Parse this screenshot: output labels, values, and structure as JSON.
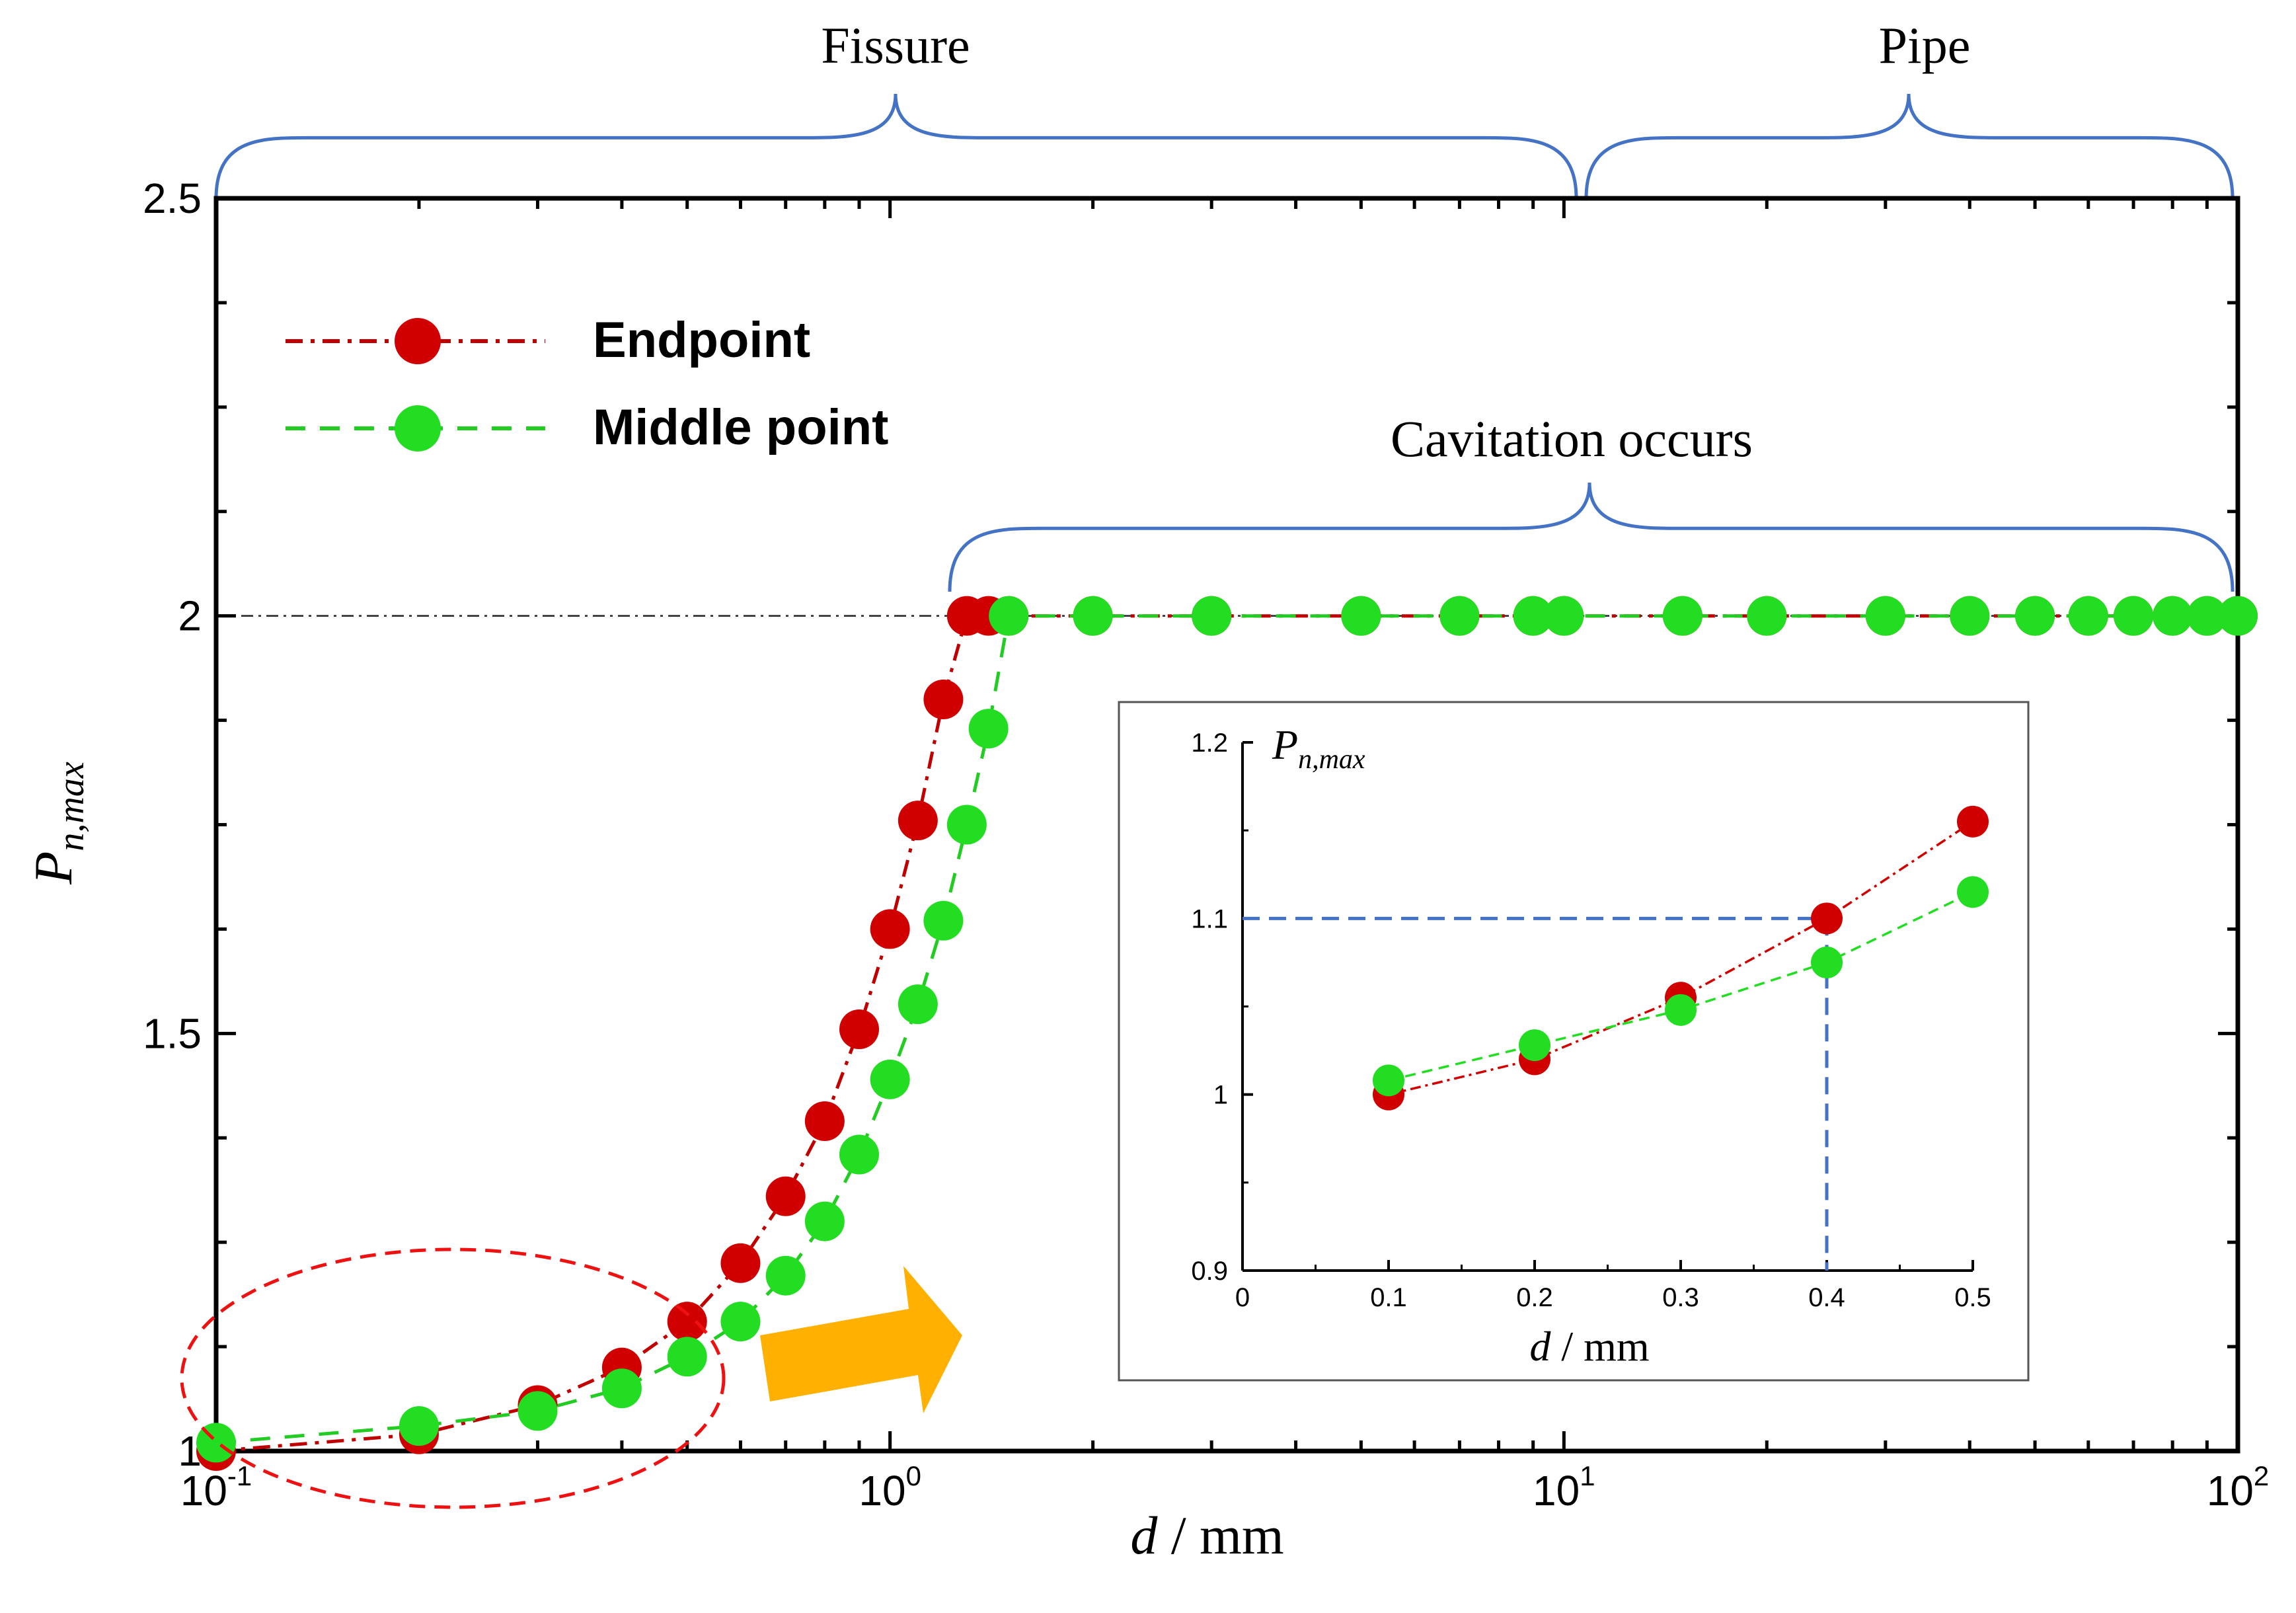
{
  "chart_data": [
    {
      "type": "line",
      "xscale": "log",
      "xlim": [
        0.1,
        100
      ],
      "ylim": [
        1,
        2.5
      ],
      "xlabel_var": "d",
      "xlabel_unit": " / mm",
      "ylabel_main": "P",
      "ylabel_sub": "n,max",
      "y_ticks": [
        {
          "value": 1,
          "label": "1"
        },
        {
          "value": 1.5,
          "label": "1.5"
        },
        {
          "value": 2,
          "label": "2"
        },
        {
          "value": 2.5,
          "label": "2.5"
        }
      ],
      "x_ticks": [
        {
          "value": 0.1,
          "base": "10",
          "exp": "-1"
        },
        {
          "value": 1,
          "base": "10",
          "exp": "0"
        },
        {
          "value": 10,
          "base": "10",
          "exp": "1"
        },
        {
          "value": 100,
          "base": "10",
          "exp": "2"
        }
      ],
      "reference_line_y": 2,
      "series": [
        {
          "name": "Endpoint",
          "color": "#d10000",
          "line_color": "#c00000",
          "dash": "dashdot",
          "x": [
            0.1,
            0.2,
            0.3,
            0.4,
            0.5,
            0.6,
            0.7,
            0.8,
            0.9,
            1.0,
            1.1,
            1.2,
            1.3,
            1.4,
            1.5,
            2,
            3,
            5,
            7,
            9,
            10,
            15,
            20,
            30,
            40,
            50,
            60,
            70,
            80,
            90,
            100
          ],
          "values": [
            1.0,
            1.02,
            1.055,
            1.1,
            1.155,
            1.225,
            1.305,
            1.395,
            1.505,
            1.625,
            1.755,
            1.9,
            2.0,
            2.0,
            2.0,
            2.0,
            2.0,
            2.0,
            2.0,
            2.0,
            2.0,
            2.0,
            2.0,
            2.0,
            2.0,
            2.0,
            2.0,
            2.0,
            2.0,
            2.0,
            2.0
          ]
        },
        {
          "name": "Middle point",
          "color": "#22dd22",
          "line_color": "#22cc22",
          "dash": "dashed",
          "x": [
            0.1,
            0.2,
            0.3,
            0.4,
            0.5,
            0.6,
            0.7,
            0.8,
            0.9,
            1.0,
            1.1,
            1.2,
            1.3,
            1.4,
            1.5,
            2,
            3,
            5,
            7,
            9,
            10,
            15,
            20,
            30,
            40,
            50,
            60,
            70,
            80,
            90,
            100
          ],
          "values": [
            1.01,
            1.03,
            1.048,
            1.075,
            1.113,
            1.155,
            1.21,
            1.275,
            1.355,
            1.445,
            1.535,
            1.635,
            1.75,
            1.865,
            2.0,
            2.0,
            2.0,
            2.0,
            2.0,
            2.0,
            2.0,
            2.0,
            2.0,
            2.0,
            2.0,
            2.0,
            2.0,
            2.0,
            2.0,
            2.0,
            2.0
          ]
        }
      ],
      "legend": {
        "placement": "top-left",
        "entries": [
          "Endpoint",
          "Middle point"
        ]
      },
      "annotations": {
        "brace_fissure": "Fissure",
        "brace_pipe": "Pipe",
        "brace_cavitation": "Cavitation occurs",
        "brace_color": "#4472c4",
        "arrow_color": "#ffb000",
        "ellipse_color": "#ee1111"
      }
    },
    {
      "type": "line",
      "title": "inset",
      "xlim": [
        0,
        0.5
      ],
      "ylim": [
        0.9,
        1.2
      ],
      "xlabel_var": "d",
      "xlabel_unit": " / mm",
      "ylabel_main": "P",
      "ylabel_sub": "n,max",
      "x_ticks": [
        {
          "value": 0,
          "label": "0"
        },
        {
          "value": 0.1,
          "label": "0.1"
        },
        {
          "value": 0.2,
          "label": "0.2"
        },
        {
          "value": 0.3,
          "label": "0.3"
        },
        {
          "value": 0.4,
          "label": "0.4"
        },
        {
          "value": 0.5,
          "label": "0.5"
        }
      ],
      "y_ticks": [
        {
          "value": 0.9,
          "label": "0.9"
        },
        {
          "value": 1.0,
          "label": "1"
        },
        {
          "value": 1.1,
          "label": "1.1"
        },
        {
          "value": 1.2,
          "label": "1.2"
        }
      ],
      "guide_point": {
        "x": 0.4,
        "y": 1.1,
        "color": "#4472c4"
      },
      "series": [
        {
          "name": "Endpoint",
          "color": "#d10000",
          "x": [
            0.1,
            0.2,
            0.3,
            0.4,
            0.5
          ],
          "values": [
            1.0,
            1.02,
            1.055,
            1.1,
            1.155
          ]
        },
        {
          "name": "Middle point",
          "color": "#22dd22",
          "x": [
            0.1,
            0.2,
            0.3,
            0.4,
            0.5
          ],
          "values": [
            1.008,
            1.028,
            1.048,
            1.075,
            1.115
          ]
        }
      ]
    }
  ]
}
